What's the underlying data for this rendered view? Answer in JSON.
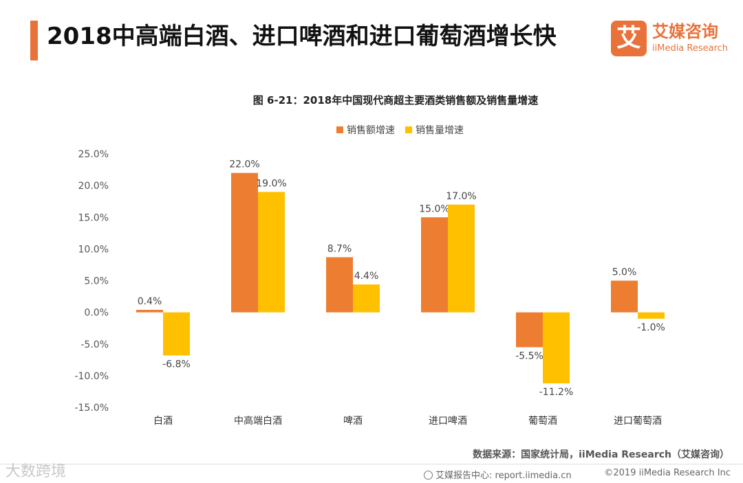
{
  "header": {
    "title": "2018中高端白酒、进口啤酒和进口葡萄酒增长快",
    "logo_mark": "艾",
    "logo_cn": "艾媒咨询",
    "logo_en": "iiMedia Research"
  },
  "colors": {
    "accent": "#e9713a",
    "series1": "#ed7d31",
    "series2": "#ffc000"
  },
  "chart_data": {
    "type": "bar",
    "title": "图 6-21：2018年中国现代商超主要酒类销售额及销售量增速",
    "categories": [
      "白酒",
      "中高端白酒",
      "啤酒",
      "进口啤酒",
      "葡萄酒",
      "进口葡萄酒"
    ],
    "series": [
      {
        "name": "销售额增速",
        "values": [
          0.4,
          22.0,
          8.7,
          15.0,
          -5.5,
          5.0
        ],
        "labels": [
          "0.4%",
          "22.0%",
          "8.7%",
          "15.0%",
          "-5.5%",
          "5.0%"
        ]
      },
      {
        "name": "销售量增速",
        "values": [
          -6.8,
          19.0,
          4.4,
          17.0,
          -11.2,
          -1.0
        ],
        "labels": [
          "-6.8%",
          "19.0%",
          "4.4%",
          "17.0%",
          "-11.2%",
          "-1.0%"
        ]
      }
    ],
    "ylim": [
      -15,
      25
    ],
    "yticks": [
      25,
      20,
      15,
      10,
      5,
      0,
      -5,
      -10,
      -15
    ],
    "ytick_labels": [
      "25.0%",
      "20.0%",
      "15.0%",
      "10.0%",
      "5.0%",
      "0.0%",
      "-5.0%",
      "-10.0%",
      "-15.0%"
    ],
    "xlabel": "",
    "ylabel": "",
    "legend": "top-center",
    "grid": false
  },
  "footer": {
    "source": "数据来源：国家统计局，iiMedia Research（艾媒咨询）",
    "watermark": "大数跨境",
    "center": "艾媒报告中心: report.iimedia.cn",
    "right": "©2019  iiMedia Research  Inc"
  }
}
